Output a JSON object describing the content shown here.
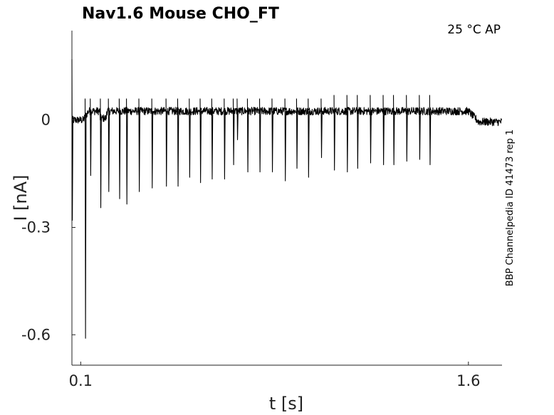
{
  "chart_data": {
    "type": "line",
    "title": "Nav1.6  Mouse  CHO_FT",
    "annotation": "25 °C  AP",
    "side_label": "BBP Channelpedia ID 41473 rep 1",
    "xlabel": "t [s]",
    "ylabel": "I [nA]",
    "x_ticks": [
      0.1,
      1.6
    ],
    "x_tick_labels": [
      "0.1",
      "1.6"
    ],
    "y_ticks": [
      0,
      -0.3,
      -0.6
    ],
    "y_tick_labels": [
      "0",
      "-0.3",
      "-0.6"
    ],
    "xlim": [
      0.066,
      1.73
    ],
    "ylim": [
      -0.685,
      0.25
    ],
    "grid": false,
    "baseline": {
      "start": 0.0,
      "step_on_time": 0.11,
      "step_off_time": 1.6,
      "plateau": 0.025,
      "end": -0.005
    },
    "spikes": [
      {
        "t": 0.066,
        "peak": 0.17,
        "trough": -0.28
      },
      {
        "t": 0.117,
        "peak": 0.06,
        "trough": -0.61
      },
      {
        "t": 0.137,
        "peak": 0.06,
        "trough": -0.155
      },
      {
        "t": 0.176,
        "peak": 0.06,
        "trough": -0.245
      },
      {
        "t": 0.207,
        "peak": 0.06,
        "trough": -0.2
      },
      {
        "t": 0.249,
        "peak": 0.06,
        "trough": -0.22
      },
      {
        "t": 0.277,
        "peak": 0.06,
        "trough": -0.235
      },
      {
        "t": 0.325,
        "peak": 0.06,
        "trough": -0.2
      },
      {
        "t": 0.375,
        "peak": 0.06,
        "trough": -0.19
      },
      {
        "t": 0.43,
        "peak": 0.06,
        "trough": -0.185
      },
      {
        "t": 0.475,
        "peak": 0.06,
        "trough": -0.185
      },
      {
        "t": 0.52,
        "peak": 0.06,
        "trough": -0.16
      },
      {
        "t": 0.562,
        "peak": 0.06,
        "trough": -0.175
      },
      {
        "t": 0.607,
        "peak": 0.06,
        "trough": -0.165
      },
      {
        "t": 0.655,
        "peak": 0.06,
        "trough": -0.165
      },
      {
        "t": 0.69,
        "peak": 0.06,
        "trough": -0.125
      },
      {
        "t": 0.705,
        "peak": 0.06,
        "trough": -0.055
      },
      {
        "t": 0.745,
        "peak": 0.06,
        "trough": -0.145
      },
      {
        "t": 0.792,
        "peak": 0.06,
        "trough": -0.145
      },
      {
        "t": 0.84,
        "peak": 0.06,
        "trough": -0.145
      },
      {
        "t": 0.89,
        "peak": 0.06,
        "trough": -0.17
      },
      {
        "t": 0.935,
        "peak": 0.06,
        "trough": -0.135
      },
      {
        "t": 0.98,
        "peak": 0.06,
        "trough": -0.16
      },
      {
        "t": 1.03,
        "peak": 0.06,
        "trough": -0.105
      },
      {
        "t": 1.08,
        "peak": 0.07,
        "trough": -0.14
      },
      {
        "t": 1.13,
        "peak": 0.07,
        "trough": -0.145
      },
      {
        "t": 1.17,
        "peak": 0.07,
        "trough": -0.135
      },
      {
        "t": 1.22,
        "peak": 0.07,
        "trough": -0.12
      },
      {
        "t": 1.27,
        "peak": 0.07,
        "trough": -0.125
      },
      {
        "t": 1.31,
        "peak": 0.07,
        "trough": -0.125
      },
      {
        "t": 1.36,
        "peak": 0.07,
        "trough": -0.115
      },
      {
        "t": 1.41,
        "peak": 0.07,
        "trough": -0.11
      },
      {
        "t": 1.45,
        "peak": 0.07,
        "trough": -0.125
      }
    ]
  }
}
